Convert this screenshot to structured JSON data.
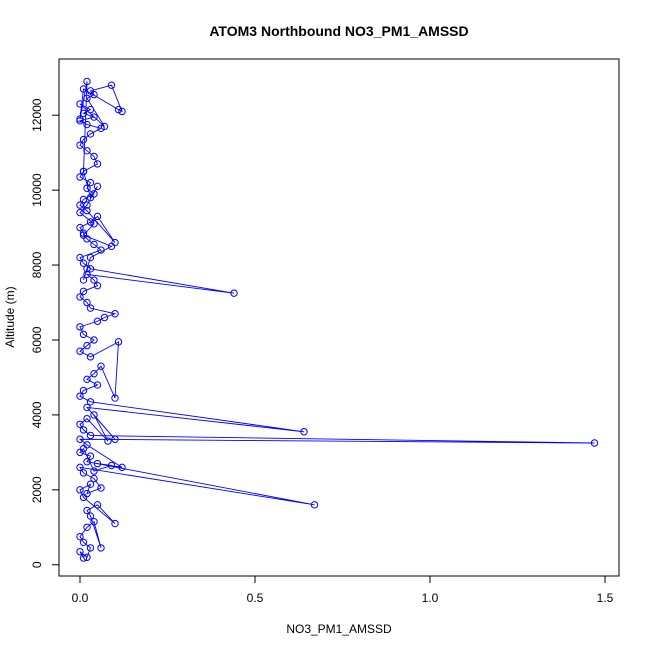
{
  "chart_data": {
    "type": "line",
    "title": "ATOM3 Northbound NO3_PM1_AMSSD",
    "xlabel": "NO3_PM1_AMSSD",
    "ylabel": "Altitude (m)",
    "xlim": [
      -0.06,
      1.54
    ],
    "ylim": [
      -300,
      13500
    ],
    "x_ticks": [
      0,
      0.5,
      1,
      1.5
    ],
    "x_tick_labels": [
      "0.0",
      "0.5",
      "1.0",
      "1.5"
    ],
    "y_ticks": [
      0,
      2000,
      4000,
      6000,
      8000,
      10000,
      12000
    ],
    "y_tick_labels": [
      "0",
      "2000",
      "4000",
      "6000",
      "8000",
      "10000",
      "12000"
    ],
    "series_color": "#0000ff",
    "marker": "open-circle",
    "grid": false,
    "series": [
      {
        "x": [
          0.01,
          0.0,
          0.02,
          0.03,
          0.01,
          0.0,
          0.02,
          0.04,
          0.06,
          0.03,
          0.02,
          0.05,
          0.1,
          0.01,
          0.0,
          0.03,
          0.02,
          0.06,
          0.04,
          0.01,
          0.0,
          0.67,
          0.02,
          0.03,
          0.0,
          0.01,
          0.04,
          0.09,
          0.05,
          0.12,
          0.02,
          0.0,
          1.47,
          0.03,
          0.01,
          0.0,
          0.02,
          0.08,
          0.04,
          0.1,
          0.02,
          0.64,
          0.03,
          0.0,
          0.01,
          0.05,
          0.02,
          0.04,
          0.06,
          0.1,
          0.11,
          0.03,
          0.0,
          0.02,
          0.04,
          0.01,
          0.0,
          0.05,
          0.07,
          0.1,
          0.03,
          0.02,
          0.0,
          0.01,
          0.05,
          0.04,
          0.02,
          0.44,
          0.03,
          0.01,
          0.0,
          0.06,
          0.04,
          0.02,
          0.01,
          0.0,
          0.03,
          0.05,
          0.1,
          0.02,
          0.0,
          0.01,
          0.04,
          0.02,
          0.03,
          0.0,
          0.01,
          0.05,
          0.04,
          0.02,
          0.0,
          0.01,
          0.03,
          0.06,
          0.02,
          0.0,
          0.04,
          0.01,
          0.03,
          0.0,
          0.07,
          0.02,
          0.04,
          0.03,
          0.09,
          0.12,
          0.11,
          0.01,
          0.0,
          0.02,
          0.01,
          0.03,
          0.05,
          0.02,
          0.0,
          0.04,
          0.01,
          0.09,
          0.03,
          0.02,
          0.01
        ],
        "y": [
          180,
          350,
          200,
          450,
          600,
          750,
          1000,
          1150,
          450,
          1300,
          1450,
          1600,
          1100,
          1800,
          2000,
          2150,
          1900,
          2050,
          2300,
          2450,
          2600,
          1600,
          2750,
          2900,
          3000,
          3100,
          2500,
          2650,
          2700,
          2600,
          3200,
          3350,
          3250,
          3450,
          3600,
          3750,
          3900,
          3300,
          4000,
          3350,
          4200,
          3550,
          4350,
          4500,
          4650,
          4800,
          4950,
          5100,
          5300,
          4450,
          5950,
          5550,
          5700,
          5850,
          6000,
          6150,
          6350,
          6500,
          6600,
          6700,
          6850,
          7000,
          7150,
          7300,
          7450,
          7600,
          7750,
          7250,
          7900,
          8050,
          8200,
          8400,
          8550,
          8700,
          8850,
          9000,
          9150,
          9300,
          8600,
          9450,
          9600,
          9750,
          9900,
          10050,
          10200,
          10350,
          10500,
          10700,
          10900,
          11050,
          11200,
          11350,
          11500,
          11650,
          11750,
          11850,
          11950,
          12050,
          12150,
          12300,
          11700,
          12450,
          12550,
          12650,
          12800,
          12100,
          12150,
          12700,
          11900,
          12900,
          10500,
          9800,
          10100,
          9600,
          9400,
          9100,
          8800,
          8500,
          8200,
          7900,
          7600
        ]
      }
    ]
  }
}
